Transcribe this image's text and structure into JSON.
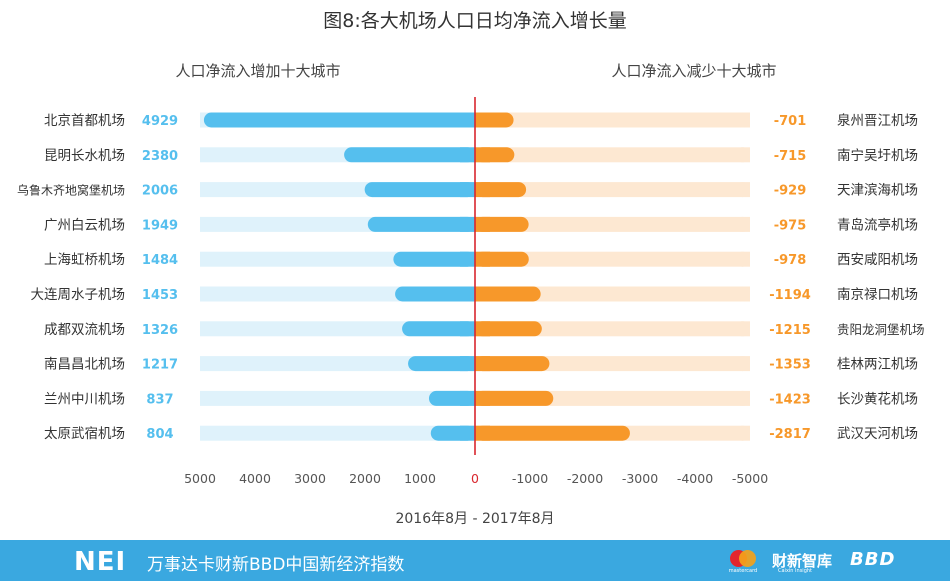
{
  "chart_data": {
    "type": "bar",
    "title": "图8:各大机场人口日均净流入增长量",
    "left_subtitle": "人口净流入增加十大城市",
    "right_subtitle": "人口净流入减少十大城市",
    "xlabel": "2016年8月 - 2017年8月",
    "xlim": [
      5000,
      -5000
    ],
    "x_ticks": [
      "5000",
      "4000",
      "3000",
      "2000",
      "1000",
      "0",
      "-1000",
      "-2000",
      "-3000",
      "-4000",
      "-5000"
    ],
    "increase": {
      "categories": [
        "北京首都机场",
        "昆明长水机场",
        "乌鲁木齐地窝堡机场",
        "广州白云机场",
        "上海虹桥机场",
        "大连周水子机场",
        "成都双流机场",
        "南昌昌北机场",
        "兰州中川机场",
        "太原武宿机场"
      ],
      "values": [
        4929,
        2380,
        2006,
        1949,
        1484,
        1453,
        1326,
        1217,
        837,
        804
      ],
      "color": "#55bfee",
      "track_color": "#dff2fb"
    },
    "decrease": {
      "categories": [
        "泉州晋江机场",
        "南宁吴圩机场",
        "天津滨海机场",
        "青岛流亭机场",
        "西安咸阳机场",
        "南京禄口机场",
        "贵阳龙洞堡机场",
        "桂林两江机场",
        "长沙黄花机场",
        "武汉天河机场"
      ],
      "values": [
        -701,
        -715,
        -929,
        -975,
        -978,
        -1194,
        -1215,
        -1353,
        -1423,
        -2817
      ],
      "color": "#f7982a",
      "track_color": "#fde8d2"
    },
    "zero_line_color": "#d9262e",
    "grid": false
  },
  "footer": {
    "logo": "NEI",
    "text": "万事达卡财新BBD中国新经济指数",
    "mastercard_caption": "mastercard",
    "caixin_logo": "财新智库",
    "caixin_caption": "Caixin Insight",
    "bbd_logo": "BBD"
  }
}
